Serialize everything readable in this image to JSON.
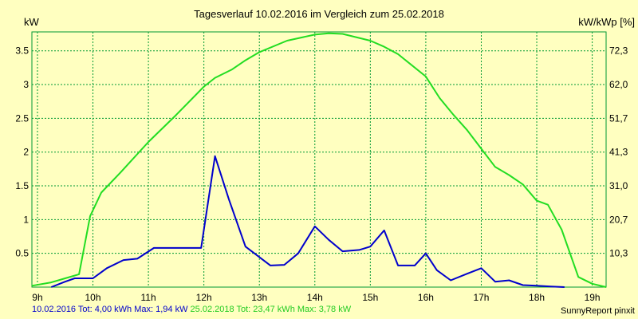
{
  "chart_data": {
    "type": "line",
    "title": "Tagesverlauf 10.02.2016 im Vergleich zum 25.02.2018",
    "ylabel_left": "kW",
    "ylabel_right": "kW/kWp [%]",
    "ylim": [
      0,
      3.78
    ],
    "x_ticks": [
      "9h",
      "10h",
      "11h",
      "12h",
      "13h",
      "14h",
      "15h",
      "16h",
      "17h",
      "18h",
      "19h"
    ],
    "x_range": [
      8.9,
      19.25
    ],
    "y_ticks_left": [
      "0.5",
      "1",
      "1.5",
      "2",
      "2.5",
      "3",
      "3.5"
    ],
    "y_ticks_right": [
      "10,3",
      "20,7",
      "31,0",
      "41,3",
      "51,7",
      "62,0",
      "72,3"
    ],
    "grid": true,
    "colors": {
      "background": "#ffffc0",
      "plot_bg": "#ffffc0",
      "grid": "#009933",
      "series1": "#0000cc",
      "series2": "#22dd22"
    },
    "series": [
      {
        "name": "10.02.2016",
        "summary": "Tot: 4,00 kWh Max: 1,94 kW",
        "points": [
          [
            9.25,
            0.0
          ],
          [
            9.5,
            0.08
          ],
          [
            9.67,
            0.13
          ],
          [
            10.0,
            0.13
          ],
          [
            10.25,
            0.28
          ],
          [
            10.55,
            0.4
          ],
          [
            10.8,
            0.42
          ],
          [
            11.1,
            0.58
          ],
          [
            11.5,
            0.58
          ],
          [
            11.95,
            0.58
          ],
          [
            12.2,
            1.94
          ],
          [
            12.45,
            1.3
          ],
          [
            12.75,
            0.6
          ],
          [
            13.2,
            0.32
          ],
          [
            13.45,
            0.33
          ],
          [
            13.7,
            0.5
          ],
          [
            14.0,
            0.9
          ],
          [
            14.25,
            0.7
          ],
          [
            14.5,
            0.53
          ],
          [
            14.8,
            0.55
          ],
          [
            15.0,
            0.6
          ],
          [
            15.25,
            0.84
          ],
          [
            15.5,
            0.32
          ],
          [
            15.8,
            0.32
          ],
          [
            16.0,
            0.5
          ],
          [
            16.2,
            0.25
          ],
          [
            16.45,
            0.1
          ],
          [
            16.75,
            0.2
          ],
          [
            17.0,
            0.28
          ],
          [
            17.25,
            0.08
          ],
          [
            17.5,
            0.1
          ],
          [
            17.75,
            0.03
          ],
          [
            18.0,
            0.02
          ],
          [
            18.25,
            0.01
          ],
          [
            18.5,
            0.0
          ]
        ]
      },
      {
        "name": "25.02.2018",
        "summary": "Tot: 23,47 kWh Max: 3,78 kW",
        "points": [
          [
            8.9,
            0.02
          ],
          [
            9.25,
            0.07
          ],
          [
            9.5,
            0.13
          ],
          [
            9.75,
            0.19
          ],
          [
            9.95,
            1.05
          ],
          [
            10.15,
            1.4
          ],
          [
            10.5,
            1.7
          ],
          [
            11.0,
            2.15
          ],
          [
            11.5,
            2.55
          ],
          [
            12.0,
            2.97
          ],
          [
            12.2,
            3.1
          ],
          [
            12.5,
            3.22
          ],
          [
            12.75,
            3.36
          ],
          [
            13.0,
            3.48
          ],
          [
            13.5,
            3.65
          ],
          [
            14.0,
            3.74
          ],
          [
            14.25,
            3.76
          ],
          [
            14.5,
            3.75
          ],
          [
            15.0,
            3.65
          ],
          [
            15.25,
            3.56
          ],
          [
            15.5,
            3.45
          ],
          [
            16.0,
            3.12
          ],
          [
            16.25,
            2.8
          ],
          [
            16.5,
            2.55
          ],
          [
            16.75,
            2.32
          ],
          [
            17.0,
            2.05
          ],
          [
            17.25,
            1.78
          ],
          [
            17.5,
            1.66
          ],
          [
            17.75,
            1.52
          ],
          [
            18.0,
            1.28
          ],
          [
            18.2,
            1.22
          ],
          [
            18.45,
            0.85
          ],
          [
            18.75,
            0.15
          ],
          [
            19.0,
            0.05
          ],
          [
            19.25,
            0.0
          ]
        ]
      }
    ]
  },
  "footer": {
    "series1_text": "10.02.2016 Tot: 4,00 kWh Max: 1,94 kW",
    "series2_text": "25.02.2018 Tot: 23,47 kWh Max: 3,78 kW",
    "credit": "SunnyReport pinxit"
  }
}
